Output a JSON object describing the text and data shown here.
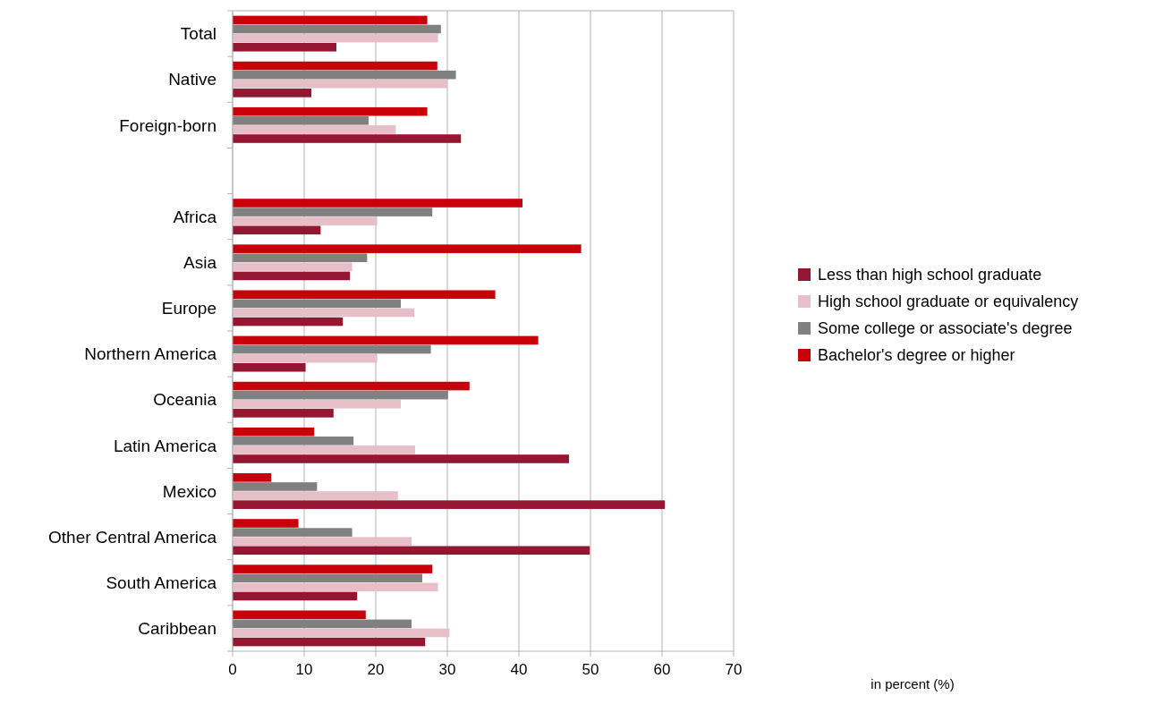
{
  "chart_data": {
    "type": "bar",
    "orientation": "horizontal",
    "annotations": [
      "in percent (%)"
    ],
    "categories": [
      "Total",
      "Native",
      "Foreign-born",
      null,
      "Africa",
      "Asia",
      "Europe",
      "Northern America",
      "Oceania",
      "Latin America",
      "Mexico",
      "Other Central America",
      "South America",
      "Caribbean"
    ],
    "series": [
      {
        "name": "Less than high school graduate",
        "color": "#951631",
        "values": [
          14.5,
          11.0,
          31.9,
          null,
          12.3,
          16.4,
          15.4,
          10.2,
          14.1,
          47.0,
          60.4,
          49.9,
          17.4,
          26.9
        ]
      },
      {
        "name": "High school graduate or equivalency",
        "color": "#e6bfc8",
        "values": [
          28.7,
          30.0,
          22.8,
          null,
          20.2,
          16.7,
          25.4,
          20.2,
          23.5,
          25.5,
          23.1,
          25.0,
          28.7,
          30.3
        ]
      },
      {
        "name": "Some college or associate's degree",
        "color": "#808080",
        "values": [
          29.1,
          31.2,
          19.0,
          null,
          27.9,
          18.8,
          23.5,
          27.7,
          30.1,
          16.9,
          11.8,
          16.7,
          26.5,
          25.0
        ]
      },
      {
        "name": "Bachelor's degree or higher",
        "color": "#c8000a",
        "values": [
          27.2,
          28.6,
          27.2,
          null,
          40.5,
          48.7,
          36.7,
          42.7,
          33.1,
          11.4,
          5.4,
          9.2,
          27.9,
          18.6
        ]
      }
    ],
    "xlim": [
      0,
      70
    ],
    "xticks": [
      0,
      10,
      20,
      30,
      40,
      50,
      60,
      70
    ],
    "grid": "x",
    "legend": "right"
  }
}
